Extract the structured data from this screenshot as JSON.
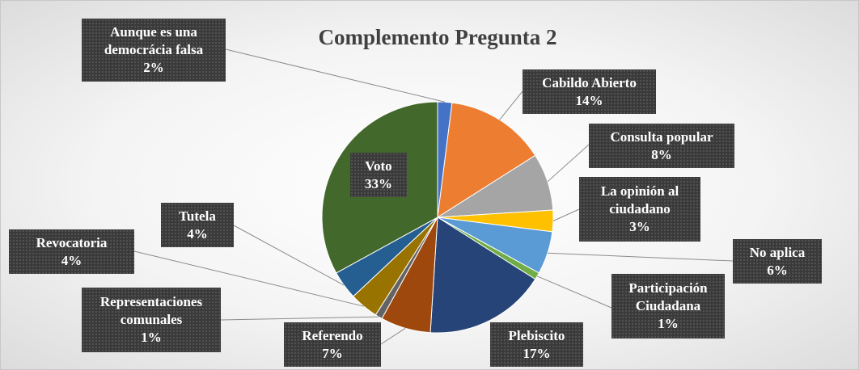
{
  "chart_data": {
    "type": "pie",
    "title": "Complemento Pregunta 2",
    "categories": [
      "Aunque es una democrácia falsa",
      "Cabildo Abierto",
      "Consulta popular",
      "La opinión al ciudadano",
      "No aplica",
      "Participación Ciudadana",
      "Plebiscito",
      "Referendo",
      "Representaciones comunales",
      "Revocatoria",
      "Tutela",
      "Voto"
    ],
    "values": [
      2,
      14,
      8,
      3,
      6,
      1,
      17,
      7,
      1,
      4,
      4,
      33
    ],
    "value_labels": [
      "2%",
      "14%",
      "8%",
      "3%",
      "6%",
      "1%",
      "17%",
      "7%",
      "1%",
      "4%",
      "4%",
      "33%"
    ],
    "colors": [
      "#4472c4",
      "#ed7d31",
      "#a5a5a5",
      "#ffc000",
      "#5b9bd5",
      "#70ad47",
      "#264478",
      "#9e480e",
      "#636363",
      "#997300",
      "#255e91",
      "#43682b"
    ]
  }
}
